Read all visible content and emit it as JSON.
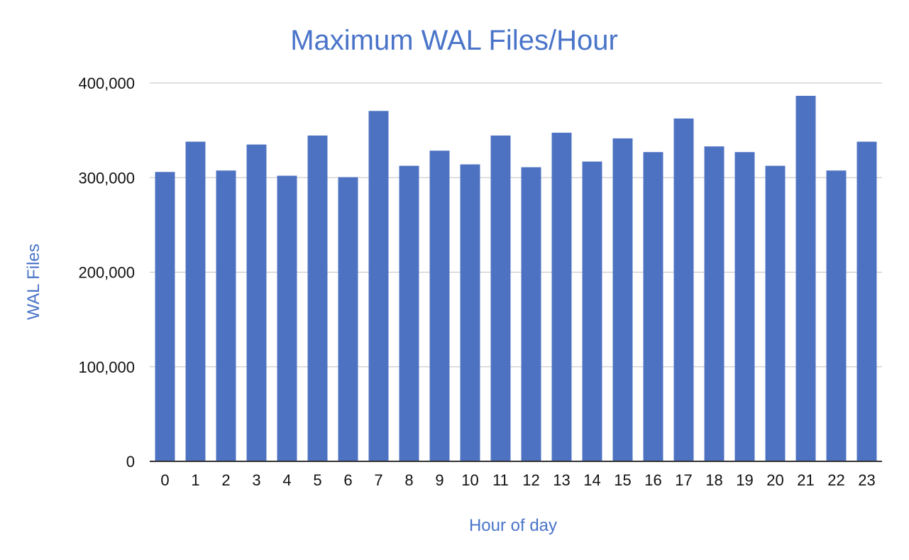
{
  "chart_data": {
    "type": "bar",
    "title": "Maximum WAL Files/Hour",
    "xlabel": "Hour of day",
    "ylabel": "WAL Files",
    "categories": [
      "0",
      "1",
      "2",
      "3",
      "4",
      "5",
      "6",
      "7",
      "8",
      "9",
      "10",
      "11",
      "12",
      "13",
      "14",
      "15",
      "16",
      "17",
      "18",
      "19",
      "20",
      "21",
      "22",
      "23"
    ],
    "values": [
      306000,
      338000,
      307500,
      335000,
      302000,
      344500,
      300500,
      370500,
      312500,
      328500,
      314000,
      344500,
      311000,
      347500,
      317000,
      341500,
      327000,
      362500,
      333000,
      327000,
      312500,
      386500,
      307500,
      338000
    ],
    "ylim": [
      0,
      400000
    ],
    "yticks": [
      0,
      100000,
      200000,
      300000,
      400000
    ],
    "ytick_labels": [
      "0",
      "100,000",
      "200,000",
      "300,000",
      "400,000"
    ],
    "grid": true,
    "legend": "none",
    "bar_color": "#4e72c2",
    "title_color": "#4a74c9"
  }
}
